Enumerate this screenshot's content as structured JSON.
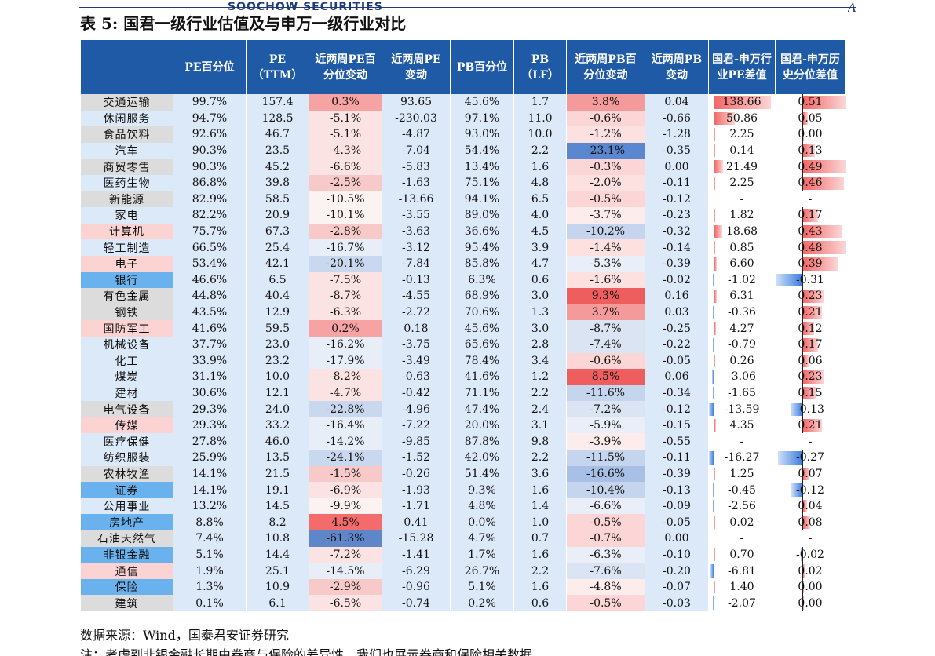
{
  "header": {
    "left_text": "SOOCHOW SECURITIES",
    "right_text": "A股策略周报"
  },
  "title": "表 5:  国君一级行业估值及与申万一级行业对比",
  "columns": [
    "",
    "PE百分位",
    "PE\n（TTM）",
    "近两周PE百\n分位变动",
    "近两周PE\n变动",
    "PB百分位",
    "PB\n（LF）",
    "近两周PB百\n分位变动",
    "近两周PB\n变动",
    "国君-申万行\n业PE差值",
    "国君-申万历\n史分位差值"
  ],
  "colors": {
    "header_bg": "#1f5aa6",
    "name_gray": "#dcdcdc",
    "name_pink": "#fbd3d3",
    "name_blue": "#6ab2ee",
    "light_blue": "#dce9f8"
  },
  "rows": [
    {
      "name": "交通运输",
      "nc": "g",
      "pe_pct": "99.7%",
      "pe": "157.4",
      "pe_chg_pct": "0.3%",
      "pe_chg": "93.65",
      "pb_pct": "45.6%",
      "pb": "1.7",
      "pb_chg_pct": "3.8%",
      "pb_chg": "0.04",
      "diff_pe": "138.66",
      "diff_hist": "0.51"
    },
    {
      "name": "休闲服务",
      "nc": "b",
      "pe_pct": "94.7%",
      "pe": "128.5",
      "pe_chg_pct": "-5.1%",
      "pe_chg": "-230.03",
      "pb_pct": "97.1%",
      "pb": "11.0",
      "pb_chg_pct": "-0.6%",
      "pb_chg": "-0.66",
      "diff_pe": "50.86",
      "diff_hist": "0.05"
    },
    {
      "name": "食品饮料",
      "nc": "g",
      "pe_pct": "92.6%",
      "pe": "46.7",
      "pe_chg_pct": "-5.1%",
      "pe_chg": "-4.87",
      "pb_pct": "93.0%",
      "pb": "10.0",
      "pb_chg_pct": "-1.2%",
      "pb_chg": "-1.28",
      "diff_pe": "2.25",
      "diff_hist": "0.00"
    },
    {
      "name": "汽车",
      "nc": "b",
      "pe_pct": "90.3%",
      "pe": "23.5",
      "pe_chg_pct": "-4.3%",
      "pe_chg": "-7.04",
      "pb_pct": "54.4%",
      "pb": "2.2",
      "pb_chg_pct": "-23.1%",
      "pb_chg": "-0.35",
      "diff_pe": "0.14",
      "diff_hist": "0.13"
    },
    {
      "name": "商贸零售",
      "nc": "g",
      "pe_pct": "90.3%",
      "pe": "45.2",
      "pe_chg_pct": "-6.6%",
      "pe_chg": "-5.83",
      "pb_pct": "13.4%",
      "pb": "1.6",
      "pb_chg_pct": "-0.3%",
      "pb_chg": "0.00",
      "diff_pe": "21.49",
      "diff_hist": "0.49"
    },
    {
      "name": "医药生物",
      "nc": "b",
      "pe_pct": "86.8%",
      "pe": "39.8",
      "pe_chg_pct": "-2.5%",
      "pe_chg": "-1.63",
      "pb_pct": "75.1%",
      "pb": "4.8",
      "pb_chg_pct": "-2.0%",
      "pb_chg": "-0.11",
      "diff_pe": "2.25",
      "diff_hist": "0.46"
    },
    {
      "name": "新能源",
      "nc": "g",
      "pe_pct": "82.9%",
      "pe": "58.5",
      "pe_chg_pct": "-10.5%",
      "pe_chg": "-13.66",
      "pb_pct": "94.1%",
      "pb": "6.5",
      "pb_chg_pct": "-0.5%",
      "pb_chg": "-0.12",
      "diff_pe": "-",
      "diff_hist": "-"
    },
    {
      "name": "家电",
      "nc": "b",
      "pe_pct": "82.2%",
      "pe": "20.9",
      "pe_chg_pct": "-10.1%",
      "pe_chg": "-3.55",
      "pb_pct": "89.0%",
      "pb": "4.0",
      "pb_chg_pct": "-3.7%",
      "pb_chg": "-0.23",
      "diff_pe": "1.82",
      "diff_hist": "0.17"
    },
    {
      "name": "计算机",
      "nc": "p",
      "pe_pct": "75.7%",
      "pe": "67.3",
      "pe_chg_pct": "-2.8%",
      "pe_chg": "-3.63",
      "pb_pct": "36.6%",
      "pb": "4.5",
      "pb_chg_pct": "-10.2%",
      "pb_chg": "-0.32",
      "diff_pe": "18.68",
      "diff_hist": "0.43"
    },
    {
      "name": "轻工制造",
      "nc": "b",
      "pe_pct": "66.5%",
      "pe": "25.4",
      "pe_chg_pct": "-16.7%",
      "pe_chg": "-3.12",
      "pb_pct": "95.4%",
      "pb": "3.9",
      "pb_chg_pct": "-1.4%",
      "pb_chg": "-0.14",
      "diff_pe": "0.85",
      "diff_hist": "0.48"
    },
    {
      "name": "电子",
      "nc": "p",
      "pe_pct": "53.4%",
      "pe": "42.1",
      "pe_chg_pct": "-20.1%",
      "pe_chg": "-7.84",
      "pb_pct": "85.8%",
      "pb": "4.7",
      "pb_chg_pct": "-5.3%",
      "pb_chg": "-0.39",
      "diff_pe": "6.60",
      "diff_hist": "0.39"
    },
    {
      "name": "银行",
      "nc": "s",
      "pe_pct": "46.6%",
      "pe": "6.5",
      "pe_chg_pct": "-7.5%",
      "pe_chg": "-0.13",
      "pb_pct": "6.3%",
      "pb": "0.6",
      "pb_chg_pct": "-1.6%",
      "pb_chg": "-0.02",
      "diff_pe": "-1.02",
      "diff_hist": "-0.31"
    },
    {
      "name": "有色金属",
      "nc": "g",
      "pe_pct": "44.8%",
      "pe": "40.4",
      "pe_chg_pct": "-8.7%",
      "pe_chg": "-4.55",
      "pb_pct": "68.9%",
      "pb": "3.0",
      "pb_chg_pct": "9.3%",
      "pb_chg": "0.16",
      "diff_pe": "6.31",
      "diff_hist": "0.23"
    },
    {
      "name": "钢铁",
      "nc": "g",
      "pe_pct": "43.5%",
      "pe": "12.9",
      "pe_chg_pct": "-6.3%",
      "pe_chg": "-2.72",
      "pb_pct": "70.6%",
      "pb": "1.3",
      "pb_chg_pct": "3.7%",
      "pb_chg": "0.03",
      "diff_pe": "-0.36",
      "diff_hist": "0.21"
    },
    {
      "name": "国防军工",
      "nc": "p",
      "pe_pct": "41.6%",
      "pe": "59.5",
      "pe_chg_pct": "0.2%",
      "pe_chg": "0.18",
      "pb_pct": "45.6%",
      "pb": "3.0",
      "pb_chg_pct": "-8.7%",
      "pb_chg": "-0.25",
      "diff_pe": "4.27",
      "diff_hist": "0.12"
    },
    {
      "name": "机械设备",
      "nc": "b",
      "pe_pct": "37.7%",
      "pe": "23.0",
      "pe_chg_pct": "-16.2%",
      "pe_chg": "-3.75",
      "pb_pct": "65.6%",
      "pb": "2.8",
      "pb_chg_pct": "-7.4%",
      "pb_chg": "-0.22",
      "diff_pe": "-0.79",
      "diff_hist": "0.17"
    },
    {
      "name": "化工",
      "nc": "b",
      "pe_pct": "33.9%",
      "pe": "23.2",
      "pe_chg_pct": "-17.9%",
      "pe_chg": "-3.49",
      "pb_pct": "78.4%",
      "pb": "3.4",
      "pb_chg_pct": "-0.6%",
      "pb_chg": "-0.05",
      "diff_pe": "0.26",
      "diff_hist": "0.06"
    },
    {
      "name": "煤炭",
      "nc": "b",
      "pe_pct": "31.1%",
      "pe": "10.0",
      "pe_chg_pct": "-8.2%",
      "pe_chg": "-0.63",
      "pb_pct": "41.6%",
      "pb": "1.2",
      "pb_chg_pct": "8.5%",
      "pb_chg": "0.06",
      "diff_pe": "-3.06",
      "diff_hist": "0.23"
    },
    {
      "name": "建材",
      "nc": "b",
      "pe_pct": "30.6%",
      "pe": "12.1",
      "pe_chg_pct": "-4.7%",
      "pe_chg": "-0.42",
      "pb_pct": "71.1%",
      "pb": "2.2",
      "pb_chg_pct": "-11.6%",
      "pb_chg": "-0.34",
      "diff_pe": "-1.65",
      "diff_hist": "0.15"
    },
    {
      "name": "电气设备",
      "nc": "g",
      "pe_pct": "29.3%",
      "pe": "24.0",
      "pe_chg_pct": "-22.8%",
      "pe_chg": "-4.96",
      "pb_pct": "47.4%",
      "pb": "2.4",
      "pb_chg_pct": "-7.2%",
      "pb_chg": "-0.12",
      "diff_pe": "-13.59",
      "diff_hist": "-0.13"
    },
    {
      "name": "传媒",
      "nc": "p",
      "pe_pct": "29.3%",
      "pe": "33.2",
      "pe_chg_pct": "-16.4%",
      "pe_chg": "-7.22",
      "pb_pct": "20.0%",
      "pb": "3.1",
      "pb_chg_pct": "-5.9%",
      "pb_chg": "-0.15",
      "diff_pe": "4.35",
      "diff_hist": "0.21"
    },
    {
      "name": "医疗保健",
      "nc": "b",
      "pe_pct": "27.8%",
      "pe": "46.0",
      "pe_chg_pct": "-14.2%",
      "pe_chg": "-9.85",
      "pb_pct": "87.8%",
      "pb": "9.8",
      "pb_chg_pct": "-3.9%",
      "pb_chg": "-0.55",
      "diff_pe": "-",
      "diff_hist": "-"
    },
    {
      "name": "纺织服装",
      "nc": "b",
      "pe_pct": "25.9%",
      "pe": "13.5",
      "pe_chg_pct": "-24.1%",
      "pe_chg": "-1.52",
      "pb_pct": "42.0%",
      "pb": "2.2",
      "pb_chg_pct": "-11.5%",
      "pb_chg": "-0.11",
      "diff_pe": "-16.27",
      "diff_hist": "-0.27"
    },
    {
      "name": "农林牧渔",
      "nc": "g",
      "pe_pct": "14.1%",
      "pe": "21.5",
      "pe_chg_pct": "-1.5%",
      "pe_chg": "-0.26",
      "pb_pct": "51.4%",
      "pb": "3.6",
      "pb_chg_pct": "-16.6%",
      "pb_chg": "-0.39",
      "diff_pe": "1.25",
      "diff_hist": "0.07"
    },
    {
      "name": "证券",
      "nc": "s",
      "pe_pct": "14.1%",
      "pe": "19.1",
      "pe_chg_pct": "-6.9%",
      "pe_chg": "-1.93",
      "pb_pct": "9.3%",
      "pb": "1.6",
      "pb_chg_pct": "-10.4%",
      "pb_chg": "-0.13",
      "diff_pe": "-0.45",
      "diff_hist": "-0.12"
    },
    {
      "name": "公用事业",
      "nc": "b",
      "pe_pct": "13.2%",
      "pe": "14.5",
      "pe_chg_pct": "-9.9%",
      "pe_chg": "-1.71",
      "pb_pct": "4.8%",
      "pb": "1.4",
      "pb_chg_pct": "-6.6%",
      "pb_chg": "-0.09",
      "diff_pe": "-2.56",
      "diff_hist": "0.04"
    },
    {
      "name": "房地产",
      "nc": "s",
      "pe_pct": "8.8%",
      "pe": "8.2",
      "pe_chg_pct": "4.5%",
      "pe_chg": "0.41",
      "pb_pct": "0.0%",
      "pb": "1.0",
      "pb_chg_pct": "-0.5%",
      "pb_chg": "-0.05",
      "diff_pe": "0.02",
      "diff_hist": "0.08"
    },
    {
      "name": "石油天然气",
      "nc": "g",
      "pe_pct": "7.4%",
      "pe": "10.8",
      "pe_chg_pct": "-61.3%",
      "pe_chg": "-15.28",
      "pb_pct": "4.7%",
      "pb": "0.7",
      "pb_chg_pct": "-0.7%",
      "pb_chg": "0.00",
      "diff_pe": "-",
      "diff_hist": "-"
    },
    {
      "name": "非银金融",
      "nc": "s",
      "pe_pct": "5.1%",
      "pe": "14.4",
      "pe_chg_pct": "-7.2%",
      "pe_chg": "-1.41",
      "pb_pct": "1.7%",
      "pb": "1.6",
      "pb_chg_pct": "-6.3%",
      "pb_chg": "-0.10",
      "diff_pe": "0.70",
      "diff_hist": "-0.02"
    },
    {
      "name": "通信",
      "nc": "p",
      "pe_pct": "1.9%",
      "pe": "25.1",
      "pe_chg_pct": "-14.5%",
      "pe_chg": "-6.29",
      "pb_pct": "26.7%",
      "pb": "2.2",
      "pb_chg_pct": "-7.6%",
      "pb_chg": "-0.20",
      "diff_pe": "-6.81",
      "diff_hist": "0.02"
    },
    {
      "name": "保险",
      "nc": "s",
      "pe_pct": "1.3%",
      "pe": "10.9",
      "pe_chg_pct": "-2.9%",
      "pe_chg": "-0.96",
      "pb_pct": "5.1%",
      "pb": "1.6",
      "pb_chg_pct": "-4.8%",
      "pb_chg": "-0.07",
      "diff_pe": "1.40",
      "diff_hist": "0.00"
    },
    {
      "name": "建筑",
      "nc": "g",
      "pe_pct": "0.1%",
      "pe": "6.1",
      "pe_chg_pct": "-6.5%",
      "pe_chg": "-0.74",
      "pb_pct": "0.2%",
      "pb": "0.6",
      "pb_chg_pct": "-0.5%",
      "pb_chg": "-0.03",
      "diff_pe": "-2.07",
      "diff_hist": "0.00"
    }
  ],
  "footer": {
    "source": "数据来源：Wind，国泰君安证券研究",
    "note": "注：考虑到非银金融长期由券商与保险的差异性，我们也展示券商和保险相关数据"
  }
}
